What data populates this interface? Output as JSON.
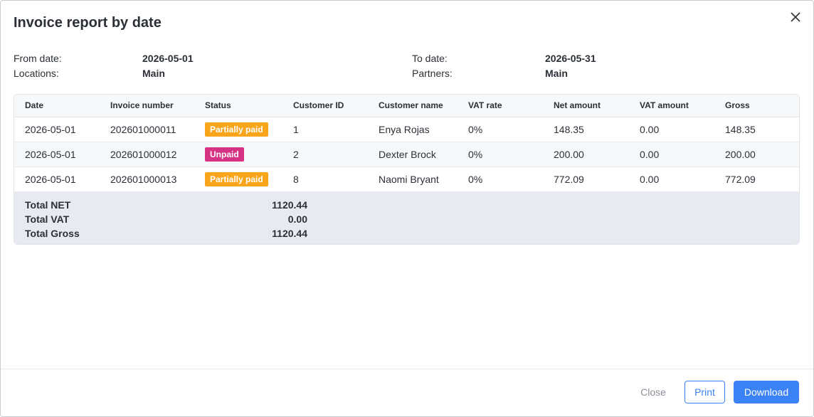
{
  "dialog": {
    "title": "Invoice report by date"
  },
  "filters": {
    "from_label": "From date:",
    "from_value": "2026-05-01",
    "locations_label": "Locations:",
    "locations_value": "Main",
    "to_label": "To date:",
    "to_value": "2026-05-31",
    "partners_label": "Partners:",
    "partners_value": "Main"
  },
  "table": {
    "headers": [
      "Date",
      "Invoice number",
      "Status",
      "Customer ID",
      "Customer name",
      "VAT rate",
      "Net amount",
      "VAT amount",
      "Gross"
    ],
    "rows": [
      {
        "date": "2026-05-01",
        "invoice": "202601000011",
        "status": "Partially paid",
        "customer_id": "1",
        "customer_name": "Enya Rojas",
        "vat_rate": "0%",
        "net": "148.35",
        "vat": "0.00",
        "gross": "148.35"
      },
      {
        "date": "2026-05-01",
        "invoice": "202601000012",
        "status": "Unpaid",
        "customer_id": "2",
        "customer_name": "Dexter Brock",
        "vat_rate": "0%",
        "net": "200.00",
        "vat": "0.00",
        "gross": "200.00"
      },
      {
        "date": "2026-05-01",
        "invoice": "202601000013",
        "status": "Partially paid",
        "customer_id": "8",
        "customer_name": "Naomi Bryant",
        "vat_rate": "0%",
        "net": "772.09",
        "vat": "0.00",
        "gross": "772.09"
      }
    ]
  },
  "totals": {
    "net_label": "Total NET",
    "net_value": "1120.44",
    "vat_label": "Total VAT",
    "vat_value": "0.00",
    "gross_label": "Total Gross",
    "gross_value": "1120.44"
  },
  "footer": {
    "close_label": "Close",
    "print_label": "Print",
    "download_label": "Download"
  },
  "colors": {
    "accent": "#3b82f6",
    "partially_paid": "#f8a51b",
    "unpaid": "#d63384"
  },
  "icons": {
    "close": "close-icon"
  }
}
